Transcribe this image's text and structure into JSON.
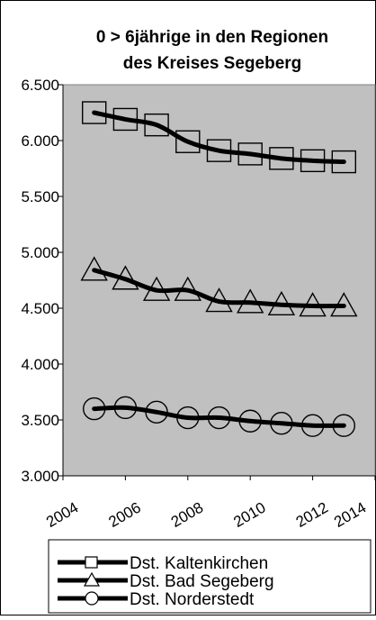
{
  "chart_data": {
    "type": "line",
    "title_lines": [
      "0 > 6jährige in den Regionen",
      "des Kreises Segeberg"
    ],
    "xlabel": "",
    "ylabel": "",
    "x": [
      2005,
      2006,
      2007,
      2008,
      2009,
      2010,
      2011,
      2012,
      2013
    ],
    "xlim": [
      2004,
      2014
    ],
    "ylim": [
      3000,
      6500
    ],
    "x_ticks": [
      "2004",
      "2006",
      "2008",
      "2010",
      "2012",
      "2014"
    ],
    "y_ticks": [
      "3.000",
      "3.500",
      "4.000",
      "4.500",
      "5.000",
      "5.500",
      "6.000",
      "6.500"
    ],
    "plot_background": "#c0c0c0",
    "grid": false,
    "smoothed": true,
    "legend_position": "bottom",
    "series": [
      {
        "name": "Dst. Kaltenkirchen",
        "marker": "square",
        "color": "#000000",
        "values": [
          6250,
          6190,
          6140,
          5990,
          5910,
          5880,
          5840,
          5820,
          5810
        ]
      },
      {
        "name": "Dst. Bad Segeberg",
        "marker": "triangle",
        "color": "#000000",
        "values": [
          4840,
          4760,
          4660,
          4660,
          4560,
          4550,
          4530,
          4520,
          4520
        ]
      },
      {
        "name": "Dst. Norderstedt",
        "marker": "circle",
        "color": "#000000",
        "values": [
          3600,
          3610,
          3570,
          3520,
          3520,
          3490,
          3470,
          3450,
          3450
        ]
      }
    ]
  }
}
